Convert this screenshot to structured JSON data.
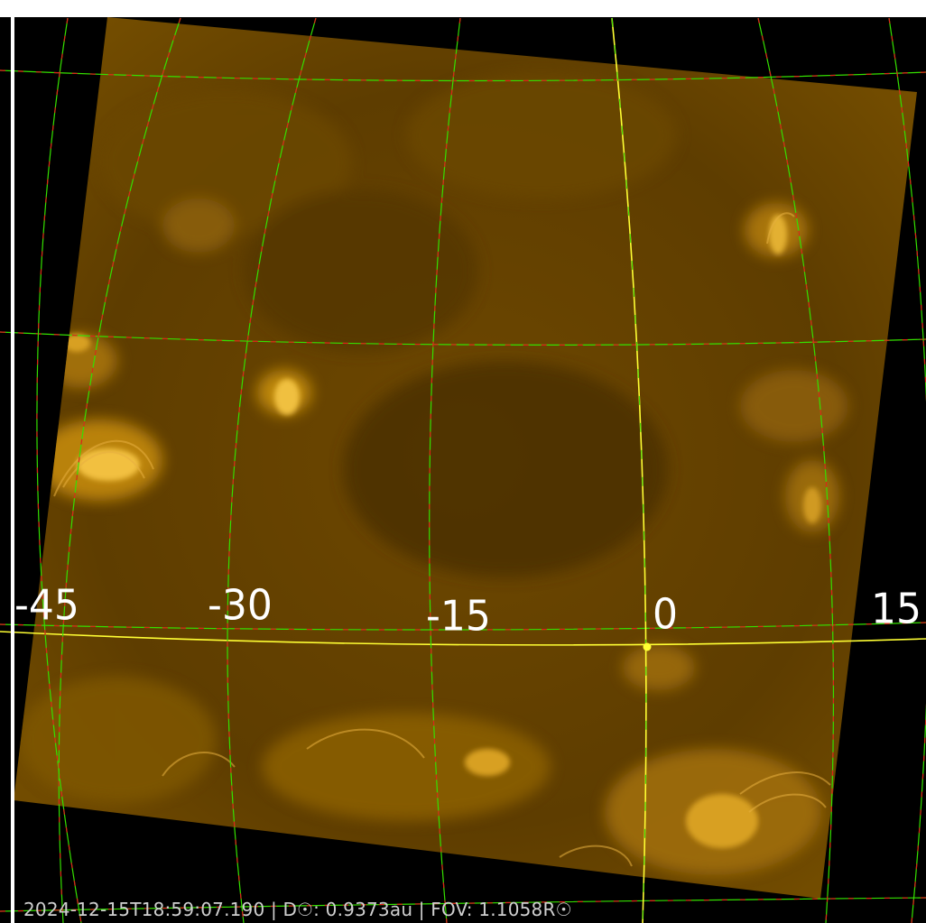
{
  "viewer": {
    "image_tint": "#b07a00",
    "background": "#000000",
    "grid_colors": {
      "primary": "#35e000",
      "secondary": "#e0201a",
      "reference": "#ffff33"
    }
  },
  "grid": {
    "longitude_labels": [
      "-45",
      "-30",
      "-15",
      "0",
      "15"
    ]
  },
  "status": {
    "text": "2024-12-15T18:59:07.190 | D☉:  0.9373au | FOV: 1.1058R☉"
  }
}
